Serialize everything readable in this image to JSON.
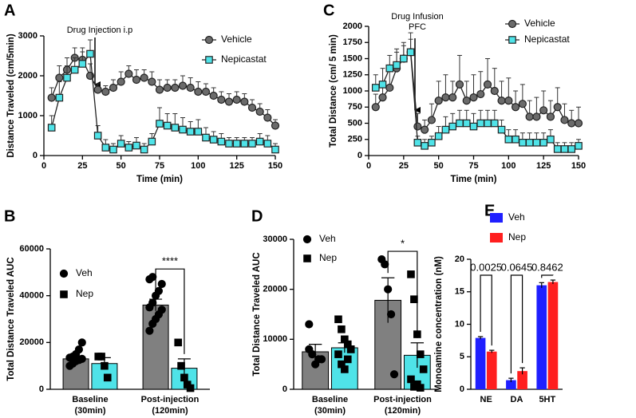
{
  "chart_data": [
    {
      "type": "line",
      "panel": "A",
      "y_label": "Distance Traveled (cm/5min)",
      "x_label": "Time (min)",
      "annotation": [
        "Drug Injection i.p"
      ],
      "xlim": [
        0,
        150
      ],
      "xticks": [
        0,
        25,
        50,
        75,
        100,
        125,
        150
      ],
      "ylim": [
        0,
        3000
      ],
      "yticks": [
        0,
        1000,
        2000,
        3000
      ],
      "x": [
        5,
        10,
        15,
        20,
        25,
        30,
        35,
        40,
        45,
        50,
        55,
        60,
        65,
        70,
        75,
        80,
        85,
        90,
        95,
        100,
        105,
        110,
        115,
        120,
        125,
        130,
        135,
        140,
        145,
        150
      ],
      "series": [
        {
          "name": "Vehicle",
          "color": "#6b6b6b",
          "marker": "circle",
          "values": [
            1450,
            1950,
            2150,
            2450,
            2400,
            2000,
            1650,
            1600,
            1700,
            1850,
            2050,
            1900,
            1950,
            1850,
            1650,
            1700,
            1700,
            1750,
            1700,
            1600,
            1600,
            1500,
            1400,
            1350,
            1400,
            1350,
            1200,
            1100,
            950,
            750
          ],
          "errors": [
            250,
            300,
            300,
            250,
            300,
            300,
            150,
            150,
            200,
            250,
            200,
            250,
            200,
            250,
            250,
            200,
            200,
            250,
            250,
            250,
            200,
            200,
            200,
            200,
            200,
            200,
            200,
            200,
            200,
            150
          ]
        },
        {
          "name": "Nepicastat",
          "color": "#4fe3e8",
          "marker": "square",
          "values": [
            700,
            1450,
            1950,
            2150,
            2300,
            2550,
            500,
            200,
            150,
            300,
            200,
            250,
            150,
            350,
            800,
            750,
            700,
            650,
            600,
            600,
            450,
            400,
            350,
            300,
            300,
            300,
            300,
            350,
            300,
            150
          ],
          "errors": [
            300,
            400,
            300,
            300,
            300,
            350,
            250,
            200,
            150,
            200,
            150,
            200,
            150,
            200,
            400,
            300,
            350,
            300,
            250,
            300,
            250,
            200,
            200,
            150,
            150,
            150,
            150,
            200,
            200,
            150
          ]
        }
      ]
    },
    {
      "type": "bar",
      "panel": "B",
      "y_label": "Total Distance Traveled AUC",
      "significance": "****",
      "categories": [
        "Baseline",
        "Post-injection"
      ],
      "category_sublabels": [
        "(30min)",
        "(120min)"
      ],
      "ylim": [
        0,
        60000
      ],
      "yticks": [
        0,
        20000,
        40000,
        60000
      ],
      "series": [
        {
          "name": "Veh",
          "color": "#808080",
          "marker": "circle",
          "values": [
            13000,
            36000
          ],
          "errors": [
            1000,
            2500
          ],
          "points": [
            [
              10000,
              11000,
              12000,
              12500,
              13000,
              13500,
              14000,
              15000,
              17000,
              20000
            ],
            [
              25000,
              28000,
              30000,
              32000,
              34000,
              35000,
              37000,
              40000,
              42000,
              45000,
              47000,
              48000
            ]
          ]
        },
        {
          "name": "Nep",
          "color": "#4fe3e8",
          "marker": "square",
          "values": [
            11000,
            9000
          ],
          "errors": [
            2500,
            4000
          ],
          "points": [
            [
              14000,
              14000,
              10000,
              5000
            ],
            [
              20000,
              10000,
              5000,
              2000,
              500
            ]
          ]
        }
      ]
    },
    {
      "type": "line",
      "panel": "C",
      "y_label": "Total Distance (cm/ 5 min)",
      "x_label": "Time (min)",
      "annotation": [
        "Drug Infusion",
        "PFC"
      ],
      "xlim": [
        0,
        150
      ],
      "xticks": [
        0,
        25,
        50,
        75,
        100,
        125,
        150
      ],
      "ylim": [
        0,
        2000
      ],
      "yticks": [
        0,
        250,
        500,
        750,
        1000,
        1250,
        1500,
        1750,
        2000
      ],
      "x": [
        5,
        10,
        15,
        20,
        25,
        30,
        35,
        40,
        45,
        50,
        55,
        60,
        65,
        70,
        75,
        80,
        85,
        90,
        95,
        100,
        105,
        110,
        115,
        120,
        125,
        130,
        135,
        140,
        145,
        150
      ],
      "series": [
        {
          "name": "Vehicle",
          "color": "#6b6b6b",
          "marker": "circle",
          "values": [
            750,
            900,
            1050,
            1350,
            1500,
            1600,
            450,
            400,
            550,
            850,
            900,
            900,
            1100,
            850,
            900,
            950,
            1100,
            1000,
            850,
            850,
            750,
            800,
            600,
            600,
            700,
            600,
            750,
            550,
            500,
            500
          ],
          "errors": [
            200,
            250,
            300,
            300,
            250,
            300,
            200,
            150,
            250,
            300,
            350,
            250,
            450,
            300,
            350,
            350,
            400,
            350,
            300,
            350,
            250,
            300,
            250,
            300,
            300,
            250,
            300,
            250,
            200,
            250
          ]
        },
        {
          "name": "Nepicastat",
          "color": "#4fe3e8",
          "marker": "square",
          "values": [
            1050,
            1100,
            1350,
            1400,
            1500,
            1600,
            200,
            150,
            200,
            300,
            400,
            450,
            500,
            500,
            450,
            500,
            500,
            500,
            400,
            250,
            250,
            200,
            200,
            200,
            200,
            250,
            100,
            100,
            100,
            150
          ],
          "errors": [
            200,
            250,
            200,
            200,
            200,
            200,
            100,
            100,
            100,
            150,
            200,
            200,
            200,
            200,
            200,
            200,
            200,
            200,
            150,
            150,
            150,
            150,
            150,
            150,
            150,
            150,
            100,
            100,
            100,
            100
          ]
        }
      ]
    },
    {
      "type": "bar",
      "panel": "D",
      "y_label": "Total Distance Traveled AUC",
      "significance": "*",
      "categories": [
        "Baseline",
        "Post-injection"
      ],
      "category_sublabels": [
        "(30min)",
        "(120min)"
      ],
      "ylim": [
        0,
        30000
      ],
      "yticks": [
        0,
        10000,
        20000,
        30000
      ],
      "series": [
        {
          "name": "Veh",
          "color": "#808080",
          "marker": "circle",
          "values": [
            7500,
            17800
          ],
          "errors": [
            1500,
            4500
          ],
          "points": [
            [
              13000,
              7000,
              5000,
              6000,
              6000,
              8000
            ],
            [
              26000,
              25000,
              20000,
              15000,
              3000
            ]
          ]
        },
        {
          "name": "Nep",
          "color": "#4fe3e8",
          "marker": "square",
          "values": [
            8300,
            6800
          ],
          "errors": [
            1000,
            2500
          ],
          "points": [
            [
              14000,
              12000,
              10000,
              9000,
              8000,
              7000,
              5000,
              4000,
              6000,
              8000
            ],
            [
              23000,
              18000,
              11000,
              7000,
              4000,
              2000,
              500,
              1000,
              300
            ]
          ]
        }
      ]
    },
    {
      "type": "bar",
      "panel": "E",
      "y_label": "Monoamine concentration (nM)",
      "p_values": [
        "0.0025",
        "0.0645",
        "0.8462"
      ],
      "categories": [
        "NE",
        "DA",
        "5HT"
      ],
      "ylim": [
        0,
        20
      ],
      "yticks": [
        0,
        5,
        10,
        15,
        20
      ],
      "series": [
        {
          "name": "Veh",
          "color": "#1f1fff",
          "values": [
            7.9,
            1.4,
            16.0
          ],
          "errors": [
            0.2,
            0.3,
            0.4
          ]
        },
        {
          "name": "Nep",
          "color": "#ff1f1f",
          "values": [
            5.8,
            2.8,
            16.5
          ],
          "errors": [
            0.2,
            0.5,
            0.3
          ]
        }
      ]
    }
  ]
}
